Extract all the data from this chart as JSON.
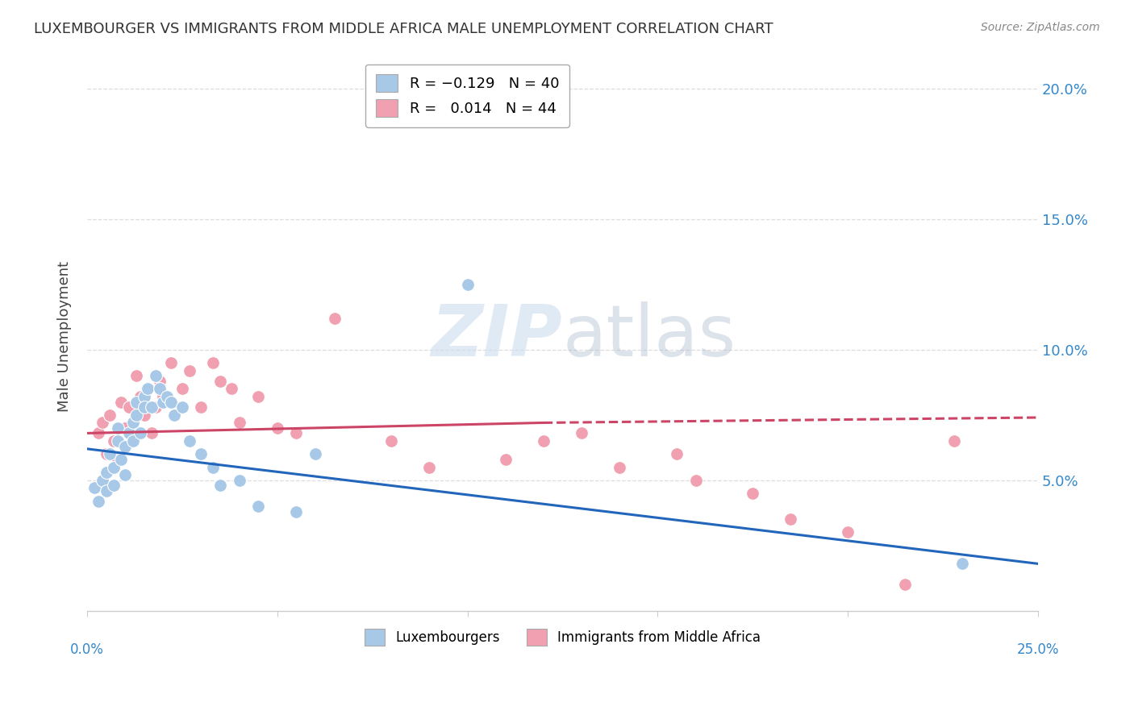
{
  "title": "LUXEMBOURGER VS IMMIGRANTS FROM MIDDLE AFRICA MALE UNEMPLOYMENT CORRELATION CHART",
  "source": "Source: ZipAtlas.com",
  "ylabel": "Male Unemployment",
  "xlim": [
    0,
    0.25
  ],
  "ylim": [
    0,
    0.21
  ],
  "yticks": [
    0.05,
    0.1,
    0.15,
    0.2
  ],
  "ytick_labels": [
    "5.0%",
    "10.0%",
    "15.0%",
    "20.0%"
  ],
  "xticks": [
    0.0,
    0.05,
    0.1,
    0.15,
    0.2,
    0.25
  ],
  "blue_color": "#a8c8e8",
  "pink_color": "#f0a0b0",
  "blue_line_color": "#2266bb",
  "pink_line_color": "#cc4466",
  "blue_x": [
    0.002,
    0.003,
    0.004,
    0.005,
    0.005,
    0.006,
    0.007,
    0.007,
    0.008,
    0.008,
    0.009,
    0.01,
    0.01,
    0.011,
    0.012,
    0.012,
    0.013,
    0.013,
    0.014,
    0.015,
    0.015,
    0.016,
    0.017,
    0.018,
    0.019,
    0.02,
    0.021,
    0.022,
    0.023,
    0.025,
    0.027,
    0.03,
    0.033,
    0.035,
    0.04,
    0.045,
    0.055,
    0.06,
    0.23,
    0.1
  ],
  "blue_y": [
    0.047,
    0.042,
    0.05,
    0.046,
    0.053,
    0.06,
    0.055,
    0.048,
    0.065,
    0.07,
    0.058,
    0.052,
    0.063,
    0.068,
    0.072,
    0.065,
    0.08,
    0.075,
    0.068,
    0.082,
    0.078,
    0.085,
    0.078,
    0.09,
    0.085,
    0.08,
    0.082,
    0.08,
    0.075,
    0.078,
    0.065,
    0.06,
    0.055,
    0.048,
    0.05,
    0.04,
    0.038,
    0.06,
    0.018,
    0.125
  ],
  "pink_x": [
    0.003,
    0.004,
    0.005,
    0.006,
    0.007,
    0.008,
    0.009,
    0.01,
    0.011,
    0.012,
    0.013,
    0.014,
    0.015,
    0.016,
    0.017,
    0.018,
    0.019,
    0.02,
    0.022,
    0.025,
    0.027,
    0.03,
    0.033,
    0.035,
    0.038,
    0.04,
    0.045,
    0.05,
    0.055,
    0.065,
    0.08,
    0.09,
    0.1,
    0.11,
    0.12,
    0.13,
    0.14,
    0.155,
    0.16,
    0.175,
    0.185,
    0.2,
    0.215,
    0.228
  ],
  "pink_y": [
    0.068,
    0.072,
    0.06,
    0.075,
    0.065,
    0.058,
    0.08,
    0.07,
    0.078,
    0.065,
    0.09,
    0.082,
    0.075,
    0.085,
    0.068,
    0.078,
    0.088,
    0.082,
    0.095,
    0.085,
    0.092,
    0.078,
    0.095,
    0.088,
    0.085,
    0.072,
    0.082,
    0.07,
    0.068,
    0.112,
    0.065,
    0.055,
    0.125,
    0.058,
    0.065,
    0.068,
    0.055,
    0.06,
    0.05,
    0.045,
    0.035,
    0.03,
    0.01,
    0.065
  ]
}
